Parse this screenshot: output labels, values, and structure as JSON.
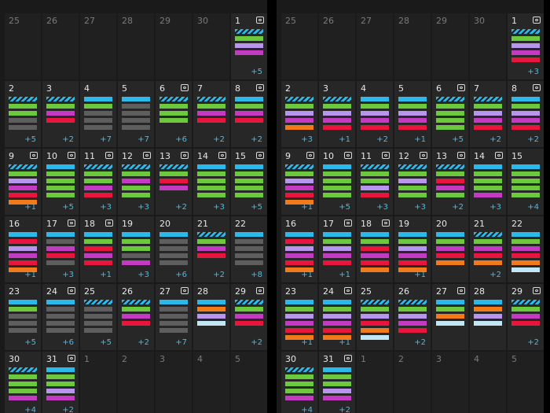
{
  "colors": {
    "blue": "#2bb8ea",
    "green": "#6cc83c",
    "magenta": "#c43ac3",
    "lavender": "#b895ee",
    "red": "#e8163c",
    "orange": "#f27a1b",
    "gray": "#5e5e5e",
    "pale": "#c2e6f4",
    "hatch": "#2bb8ea"
  },
  "views": [
    {
      "name": "left",
      "days": [
        {
          "label": "25",
          "other": true,
          "photo": false,
          "bars": [],
          "more": ""
        },
        {
          "label": "26",
          "other": true,
          "photo": false,
          "bars": [],
          "more": ""
        },
        {
          "label": "27",
          "other": true,
          "photo": false,
          "bars": [],
          "more": ""
        },
        {
          "label": "28",
          "other": true,
          "photo": false,
          "bars": [],
          "more": ""
        },
        {
          "label": "29",
          "other": true,
          "photo": false,
          "bars": [],
          "more": ""
        },
        {
          "label": "30",
          "other": true,
          "photo": false,
          "bars": [],
          "more": ""
        },
        {
          "label": "1",
          "other": false,
          "photo": true,
          "bars": [
            "hatch",
            "green",
            "lavender",
            "magenta"
          ],
          "more": "+5"
        },
        {
          "label": "2",
          "other": false,
          "photo": false,
          "bars": [
            "hatch",
            "green",
            "green",
            "gray",
            "gray"
          ],
          "more": "+5"
        },
        {
          "label": "3",
          "other": false,
          "photo": false,
          "bars": [
            "hatch",
            "green",
            "magenta",
            "red"
          ],
          "more": "+2"
        },
        {
          "label": "4",
          "other": false,
          "photo": false,
          "bars": [
            "blue",
            "green",
            "gray",
            "gray",
            "gray"
          ],
          "more": "+7"
        },
        {
          "label": "5",
          "other": false,
          "photo": false,
          "bars": [
            "blue",
            "gray",
            "gray",
            "gray",
            "gray"
          ],
          "more": "+7"
        },
        {
          "label": "6",
          "other": false,
          "photo": true,
          "bars": [
            "hatch",
            "green",
            "green",
            "green"
          ],
          "more": "+6"
        },
        {
          "label": "7",
          "other": false,
          "photo": false,
          "bars": [
            "hatch",
            "green",
            "magenta",
            "red"
          ],
          "more": "+2"
        },
        {
          "label": "8",
          "other": false,
          "photo": true,
          "bars": [
            "blue",
            "green",
            "magenta",
            "red"
          ],
          "more": "+2"
        },
        {
          "label": "9",
          "other": false,
          "photo": true,
          "bars": [
            "hatch",
            "green",
            "lavender",
            "magenta",
            "red",
            "orange"
          ],
          "more": "+1"
        },
        {
          "label": "10",
          "other": false,
          "photo": true,
          "bars": [
            "blue",
            "green",
            "green",
            "green",
            "green"
          ],
          "more": "+5"
        },
        {
          "label": "11",
          "other": false,
          "photo": true,
          "bars": [
            "hatch",
            "green",
            "green",
            "magenta",
            "red"
          ],
          "more": "+3"
        },
        {
          "label": "12",
          "other": false,
          "photo": true,
          "bars": [
            "hatch",
            "green",
            "magenta",
            "green",
            "green"
          ],
          "more": "+3"
        },
        {
          "label": "13",
          "other": false,
          "photo": true,
          "bars": [
            "hatch",
            "green",
            "red",
            "magenta"
          ],
          "more": "+2"
        },
        {
          "label": "14",
          "other": false,
          "photo": true,
          "bars": [
            "blue",
            "green",
            "green",
            "green",
            "green"
          ],
          "more": "+3"
        },
        {
          "label": "15",
          "other": false,
          "photo": true,
          "bars": [
            "blue",
            "green",
            "green",
            "green",
            "green"
          ],
          "more": "+5"
        },
        {
          "label": "16",
          "other": false,
          "photo": false,
          "bars": [
            "blue",
            "red",
            "lavender",
            "magenta",
            "red",
            "orange"
          ],
          "more": "+1"
        },
        {
          "label": "17",
          "other": false,
          "photo": true,
          "bars": [
            "blue",
            "gray",
            "magenta",
            "red",
            "gray"
          ],
          "more": "+3"
        },
        {
          "label": "18",
          "other": false,
          "photo": true,
          "bars": [
            "blue",
            "green",
            "red",
            "magenta",
            "red"
          ],
          "more": "+1"
        },
        {
          "label": "19",
          "other": false,
          "photo": false,
          "bars": [
            "blue",
            "green",
            "green",
            "gray",
            "magenta"
          ],
          "more": "+3"
        },
        {
          "label": "20",
          "other": false,
          "photo": false,
          "bars": [
            "blue",
            "gray",
            "gray",
            "gray",
            "gray"
          ],
          "more": "+6"
        },
        {
          "label": "21",
          "other": false,
          "photo": false,
          "bars": [
            "hatch",
            "green",
            "magenta",
            "red"
          ],
          "more": "+2"
        },
        {
          "label": "22",
          "other": false,
          "photo": false,
          "bars": [
            "blue",
            "gray",
            "gray",
            "gray",
            "gray"
          ],
          "more": "+8"
        },
        {
          "label": "23",
          "other": false,
          "photo": false,
          "bars": [
            "blue",
            "green",
            "gray",
            "gray",
            "gray"
          ],
          "more": "+5"
        },
        {
          "label": "24",
          "other": false,
          "photo": true,
          "bars": [
            "blue",
            "gray",
            "gray",
            "gray",
            "gray"
          ],
          "more": "+6"
        },
        {
          "label": "25",
          "other": false,
          "photo": false,
          "bars": [
            "hatch",
            "gray",
            "gray",
            "gray",
            "gray"
          ],
          "more": "+5"
        },
        {
          "label": "26",
          "other": false,
          "photo": false,
          "bars": [
            "hatch",
            "green",
            "magenta",
            "red"
          ],
          "more": "+2"
        },
        {
          "label": "27",
          "other": false,
          "photo": true,
          "bars": [
            "blue",
            "gray",
            "gray",
            "gray",
            "gray"
          ],
          "more": "+7"
        },
        {
          "label": "28",
          "other": false,
          "photo": false,
          "bars": [
            "blue",
            "orange",
            "lavender",
            "pale"
          ],
          "more": ""
        },
        {
          "label": "29",
          "other": false,
          "photo": true,
          "bars": [
            "hatch",
            "green",
            "magenta",
            "red"
          ],
          "more": "+2"
        },
        {
          "label": "30",
          "other": false,
          "photo": false,
          "bars": [
            "hatch",
            "green",
            "green",
            "green",
            "magenta"
          ],
          "more": "+4"
        },
        {
          "label": "31",
          "other": false,
          "photo": true,
          "bars": [
            "blue",
            "green",
            "green",
            "lavender",
            "magenta"
          ],
          "more": "+2"
        },
        {
          "label": "1",
          "other": true,
          "photo": false,
          "bars": [],
          "more": ""
        },
        {
          "label": "2",
          "other": true,
          "photo": false,
          "bars": [],
          "more": ""
        },
        {
          "label": "3",
          "other": true,
          "photo": false,
          "bars": [],
          "more": ""
        },
        {
          "label": "4",
          "other": true,
          "photo": false,
          "bars": [],
          "more": ""
        },
        {
          "label": "5",
          "other": true,
          "photo": false,
          "bars": [],
          "more": ""
        }
      ]
    },
    {
      "name": "right",
      "days": [
        {
          "label": "25",
          "other": true,
          "photo": false,
          "bars": [],
          "more": ""
        },
        {
          "label": "26",
          "other": true,
          "photo": false,
          "bars": [],
          "more": ""
        },
        {
          "label": "27",
          "other": true,
          "photo": false,
          "bars": [],
          "more": ""
        },
        {
          "label": "28",
          "other": true,
          "photo": false,
          "bars": [],
          "more": ""
        },
        {
          "label": "29",
          "other": true,
          "photo": false,
          "bars": [],
          "more": ""
        },
        {
          "label": "30",
          "other": true,
          "photo": false,
          "bars": [],
          "more": ""
        },
        {
          "label": "1",
          "other": false,
          "photo": true,
          "bars": [
            "hatch",
            "green",
            "lavender",
            "magenta",
            "red"
          ],
          "more": "+3"
        },
        {
          "label": "2",
          "other": false,
          "photo": false,
          "bars": [
            "hatch",
            "green",
            "lavender",
            "magenta",
            "orange"
          ],
          "more": "+3"
        },
        {
          "label": "3",
          "other": false,
          "photo": false,
          "bars": [
            "hatch",
            "green",
            "lavender",
            "magenta",
            "red"
          ],
          "more": "+1"
        },
        {
          "label": "4",
          "other": false,
          "photo": false,
          "bars": [
            "blue",
            "green",
            "lavender",
            "magenta",
            "red"
          ],
          "more": "+2"
        },
        {
          "label": "5",
          "other": false,
          "photo": false,
          "bars": [
            "blue",
            "green",
            "lavender",
            "magenta",
            "red"
          ],
          "more": "+1"
        },
        {
          "label": "6",
          "other": false,
          "photo": true,
          "bars": [
            "hatch",
            "green",
            "green",
            "green",
            "green"
          ],
          "more": "+5"
        },
        {
          "label": "7",
          "other": false,
          "photo": false,
          "bars": [
            "hatch",
            "green",
            "lavender",
            "magenta",
            "red"
          ],
          "more": "+2"
        },
        {
          "label": "8",
          "other": false,
          "photo": true,
          "bars": [
            "blue",
            "green",
            "lavender",
            "magenta",
            "red"
          ],
          "more": "+2"
        },
        {
          "label": "9",
          "other": false,
          "photo": true,
          "bars": [
            "hatch",
            "green",
            "lavender",
            "magenta",
            "red",
            "orange"
          ],
          "more": "+1"
        },
        {
          "label": "10",
          "other": false,
          "photo": true,
          "bars": [
            "blue",
            "green",
            "green",
            "green",
            "green"
          ],
          "more": "+5"
        },
        {
          "label": "11",
          "other": false,
          "photo": true,
          "bars": [
            "hatch",
            "green",
            "green",
            "lavender",
            "red"
          ],
          "more": "+3"
        },
        {
          "label": "12",
          "other": false,
          "photo": true,
          "bars": [
            "hatch",
            "green",
            "lavender",
            "green",
            "green"
          ],
          "more": "+3"
        },
        {
          "label": "13",
          "other": false,
          "photo": true,
          "bars": [
            "hatch",
            "green",
            "red",
            "magenta",
            "green"
          ],
          "more": "+2"
        },
        {
          "label": "14",
          "other": false,
          "photo": true,
          "bars": [
            "blue",
            "green",
            "green",
            "green",
            "magenta"
          ],
          "more": "+3"
        },
        {
          "label": "15",
          "other": false,
          "photo": false,
          "bars": [
            "blue",
            "green",
            "green",
            "green",
            "green"
          ],
          "more": "+4"
        },
        {
          "label": "16",
          "other": false,
          "photo": false,
          "bars": [
            "blue",
            "red",
            "lavender",
            "magenta",
            "red",
            "orange"
          ],
          "more": "+1"
        },
        {
          "label": "17",
          "other": false,
          "photo": true,
          "bars": [
            "blue",
            "green",
            "lavender",
            "magenta",
            "red"
          ],
          "more": "+1"
        },
        {
          "label": "18",
          "other": false,
          "photo": true,
          "bars": [
            "blue",
            "green",
            "red",
            "magenta",
            "red",
            "orange"
          ],
          "more": ""
        },
        {
          "label": "19",
          "other": false,
          "photo": false,
          "bars": [
            "blue",
            "green",
            "lavender",
            "magenta",
            "red",
            "orange"
          ],
          "more": "+1"
        },
        {
          "label": "20",
          "other": false,
          "photo": false,
          "bars": [
            "blue",
            "green",
            "magenta",
            "red",
            "orange"
          ],
          "more": ""
        },
        {
          "label": "21",
          "other": false,
          "photo": false,
          "bars": [
            "hatch",
            "green",
            "magenta",
            "red",
            "orange"
          ],
          "more": "+2"
        },
        {
          "label": "22",
          "other": false,
          "photo": false,
          "bars": [
            "blue",
            "green",
            "magenta",
            "red",
            "orange",
            "pale"
          ],
          "more": ""
        },
        {
          "label": "23",
          "other": false,
          "photo": false,
          "bars": [
            "blue",
            "green",
            "lavender",
            "magenta",
            "red",
            "orange"
          ],
          "more": "+1"
        },
        {
          "label": "24",
          "other": false,
          "photo": true,
          "bars": [
            "blue",
            "green",
            "lavender",
            "magenta",
            "red",
            "orange"
          ],
          "more": "+1"
        },
        {
          "label": "25",
          "other": false,
          "photo": false,
          "bars": [
            "hatch",
            "green",
            "lavender",
            "red",
            "orange",
            "pale"
          ],
          "more": ""
        },
        {
          "label": "26",
          "other": false,
          "photo": false,
          "bars": [
            "hatch",
            "green",
            "lavender",
            "magenta",
            "red"
          ],
          "more": "+2"
        },
        {
          "label": "27",
          "other": false,
          "photo": true,
          "bars": [
            "blue",
            "green",
            "orange",
            "pale"
          ],
          "more": ""
        },
        {
          "label": "28",
          "other": false,
          "photo": false,
          "bars": [
            "blue",
            "orange",
            "lavender",
            "pale"
          ],
          "more": ""
        },
        {
          "label": "29",
          "other": false,
          "photo": true,
          "bars": [
            "hatch",
            "green",
            "magenta",
            "red"
          ],
          "more": "+2"
        },
        {
          "label": "30",
          "other": false,
          "photo": false,
          "bars": [
            "hatch",
            "green",
            "green",
            "green",
            "magenta"
          ],
          "more": "+4"
        },
        {
          "label": "31",
          "other": false,
          "photo": true,
          "bars": [
            "blue",
            "green",
            "green",
            "lavender",
            "magenta"
          ],
          "more": "+2"
        },
        {
          "label": "1",
          "other": true,
          "photo": false,
          "bars": [],
          "more": ""
        },
        {
          "label": "2",
          "other": true,
          "photo": false,
          "bars": [],
          "more": ""
        },
        {
          "label": "3",
          "other": true,
          "photo": false,
          "bars": [],
          "more": ""
        },
        {
          "label": "4",
          "other": true,
          "photo": false,
          "bars": [],
          "more": ""
        },
        {
          "label": "5",
          "other": true,
          "photo": false,
          "bars": [],
          "more": ""
        }
      ]
    }
  ]
}
